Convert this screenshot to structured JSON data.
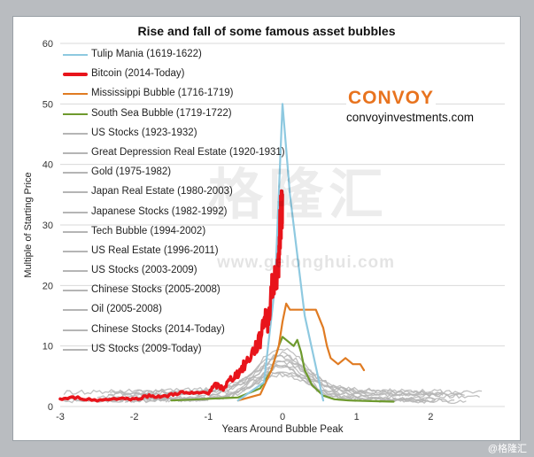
{
  "chart_data": {
    "type": "line",
    "title": "Rise and fall of some famous asset bubbles",
    "xlabel": "Years Around Bubble Peak",
    "ylabel": "Multiple of Starting Price",
    "xlim": [
      -3,
      3
    ],
    "ylim": [
      0,
      60
    ],
    "xticks": [
      -3,
      -2,
      -1,
      0,
      1,
      2
    ],
    "yticks": [
      0,
      10,
      20,
      30,
      40,
      50,
      60
    ],
    "series": [
      {
        "name": "Tulip Mania (1619-1622)",
        "color": "#8ec9e0",
        "highlight": true,
        "x": [
          -0.6,
          -0.25,
          -0.1,
          0,
          0.1,
          0.3,
          0.55
        ],
        "y": [
          1,
          4,
          20,
          50,
          35,
          15,
          1
        ]
      },
      {
        "name": "Bitcoin (2014-Today)",
        "color": "#e8141b",
        "highlight": true,
        "x": [
          -3.0,
          -2.8,
          -2.5,
          -2.2,
          -2.0,
          -1.8,
          -1.6,
          -1.4,
          -1.2,
          -1.0,
          -0.9,
          -0.8,
          -0.7,
          -0.6,
          -0.5,
          -0.4,
          -0.3,
          -0.25,
          -0.2,
          -0.15,
          -0.1,
          -0.05,
          -0.03,
          -0.01,
          0
        ],
        "y": [
          1.2,
          1.5,
          1.0,
          1.4,
          1.2,
          1.8,
          1.6,
          2.3,
          2.1,
          2.4,
          3.5,
          3.0,
          4.5,
          5.5,
          7.0,
          9.0,
          11.0,
          15.0,
          14.0,
          19.0,
          21.0,
          24.0,
          30.0,
          33.0,
          35.0
        ]
      },
      {
        "name": "Mississippi Bubble (1716-1719)",
        "color": "#e07b22",
        "highlight": true,
        "x": [
          -0.6,
          -0.3,
          -0.15,
          -0.05,
          0,
          0.05,
          0.1,
          0.2,
          0.3,
          0.45,
          0.55,
          0.6,
          0.65,
          0.75,
          0.85,
          0.95,
          1.05,
          1.1
        ],
        "y": [
          1,
          2,
          6,
          10,
          14,
          17,
          16,
          16,
          16,
          16,
          13,
          10,
          8,
          7,
          8,
          7,
          7,
          6
        ]
      },
      {
        "name": "South Sea Bubble (1719-1722)",
        "color": "#6e9a2e",
        "highlight": true,
        "x": [
          -1.5,
          -0.6,
          -0.3,
          -0.15,
          -0.05,
          0,
          0.05,
          0.15,
          0.2,
          0.25,
          0.3,
          0.4,
          0.55,
          0.7,
          0.9,
          1.2,
          1.5
        ],
        "y": [
          1,
          1.5,
          3,
          6,
          10,
          11.5,
          11,
          10,
          11,
          9,
          6,
          3.5,
          1.8,
          1.2,
          1.0,
          0.9,
          0.8
        ]
      },
      {
        "name": "US Stocks (1923-1932)",
        "color": "#b5b5b5",
        "highlight": false
      },
      {
        "name": "Great Depression Real Estate (1920-1931)",
        "color": "#b5b5b5",
        "highlight": false
      },
      {
        "name": "Gold (1975-1982)",
        "color": "#b5b5b5",
        "highlight": false
      },
      {
        "name": "Japan Real Estate (1980-2003)",
        "color": "#b5b5b5",
        "highlight": false
      },
      {
        "name": "Japanese Stocks (1982-1992)",
        "color": "#b5b5b5",
        "highlight": false
      },
      {
        "name": "Tech Bubble (1994-2002)",
        "color": "#b5b5b5",
        "highlight": false
      },
      {
        "name": "US Real Estate (1996-2011)",
        "color": "#b5b5b5",
        "highlight": false
      },
      {
        "name": "US Stocks (2003-2009)",
        "color": "#b5b5b5",
        "highlight": false
      },
      {
        "name": "Chinese Stocks (2005-2008)",
        "color": "#b5b5b5",
        "highlight": false
      },
      {
        "name": "Oil (2005-2008)",
        "color": "#b5b5b5",
        "highlight": false
      },
      {
        "name": "Chinese Stocks (2014-Today)",
        "color": "#b5b5b5",
        "highlight": false
      },
      {
        "name": "US Stocks (2009-Today)",
        "color": "#b5b5b5",
        "highlight": false
      }
    ]
  },
  "brand": {
    "logo": "CONVOY",
    "url": "convoyinvestments.com"
  },
  "watermark": {
    "cn": "格隆汇",
    "url": "www.gelonghui.com"
  },
  "credit": "@格隆汇"
}
